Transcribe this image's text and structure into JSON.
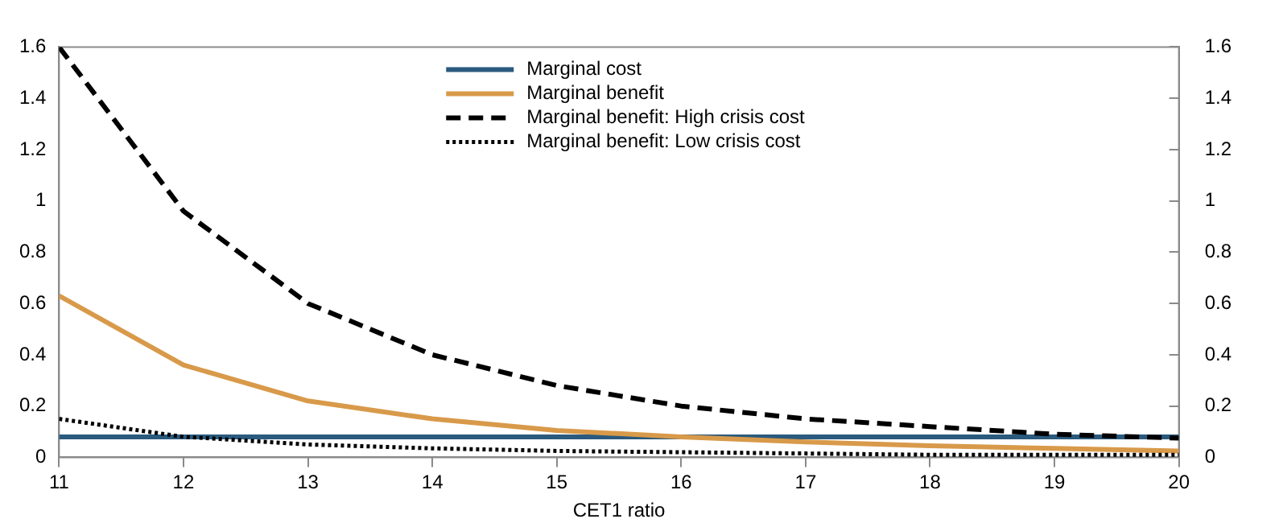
{
  "chart_data": {
    "type": "line",
    "xlabel": "CET1 ratio",
    "x": [
      11,
      12,
      13,
      14,
      15,
      16,
      17,
      18,
      19,
      20
    ],
    "xlim": [
      11,
      20
    ],
    "xticks": [
      11,
      12,
      13,
      14,
      15,
      16,
      17,
      18,
      19,
      20
    ],
    "ylim": [
      0,
      1.6
    ],
    "yticks": [
      0,
      0.2,
      0.4,
      0.6,
      0.8,
      1,
      1.2,
      1.4,
      1.6
    ],
    "y2lim": [
      0,
      1.6
    ],
    "y2ticks": [
      0,
      0.2,
      0.4,
      0.6,
      0.8,
      1,
      1.2,
      1.4,
      1.6
    ],
    "grid": false,
    "legend": "top",
    "marker": "none",
    "series": [
      {
        "name": "Marginal cost",
        "color": "#2a5a7e",
        "line_style": "solid",
        "values": [
          0.08,
          0.08,
          0.08,
          0.08,
          0.08,
          0.08,
          0.08,
          0.08,
          0.08,
          0.08
        ]
      },
      {
        "name": "Marginal benefit",
        "color": "#d89a4a",
        "line_style": "solid",
        "values": [
          0.63,
          0.36,
          0.22,
          0.15,
          0.105,
          0.08,
          0.06,
          0.045,
          0.035,
          0.025
        ]
      },
      {
        "name": "Marginal benefit: High crisis cost",
        "color": "#000000",
        "line_style": "dashed",
        "values": [
          1.6,
          0.96,
          0.6,
          0.4,
          0.28,
          0.2,
          0.15,
          0.12,
          0.09,
          0.075
        ]
      },
      {
        "name": "Marginal benefit: Low crisis cost",
        "color": "#000000",
        "line_style": "dotted",
        "values": [
          0.15,
          0.08,
          0.05,
          0.035,
          0.025,
          0.02,
          0.015,
          0.01,
          0.01,
          0.01
        ]
      }
    ]
  }
}
